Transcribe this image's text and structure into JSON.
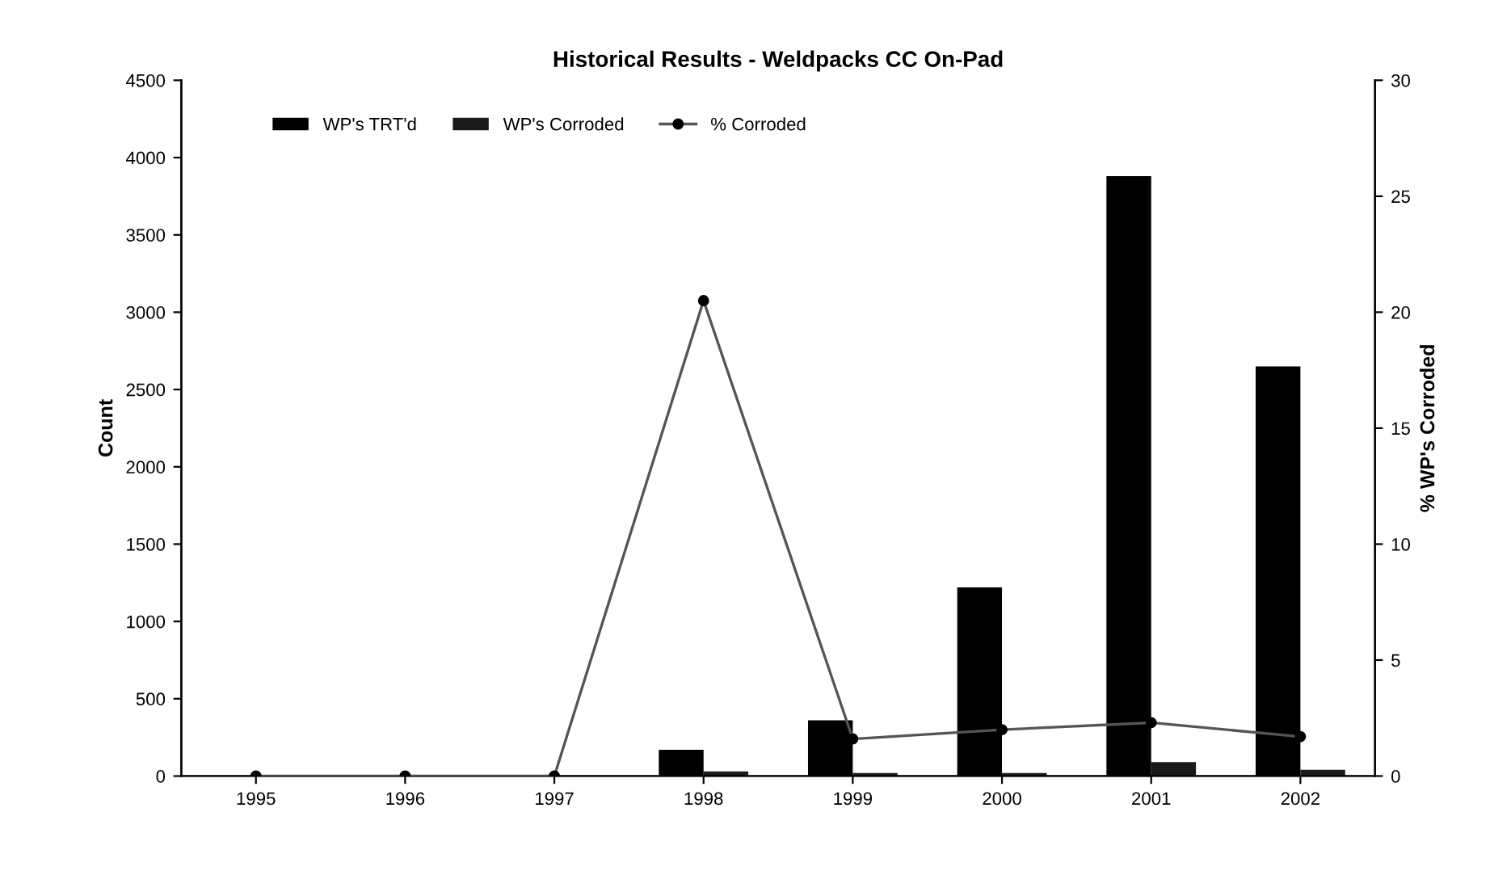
{
  "chart_data": {
    "type": "bar",
    "title": "Historical Results - Weldpacks CC On-Pad",
    "ylabel": "Count",
    "y2label": "% WP's Corroded",
    "categories": [
      "1995",
      "1996",
      "1997",
      "1998",
      "1999",
      "2000",
      "2001",
      "2002"
    ],
    "series": [
      {
        "name": "WP's TRT'd",
        "color": "#000000",
        "values": [
          0,
          0,
          0,
          170,
          360,
          1220,
          3880,
          2650
        ]
      },
      {
        "name": "WP's Corroded",
        "color": "#1a1a1a",
        "values": [
          0,
          0,
          0,
          30,
          20,
          20,
          90,
          40
        ]
      },
      {
        "name": "% Corroded",
        "type": "line",
        "axis": "y2",
        "color": "#555555",
        "marker": "circle",
        "values": [
          0,
          0,
          0,
          20.5,
          1.6,
          2.0,
          2.3,
          1.7
        ]
      }
    ],
    "ylim": [
      0,
      4500
    ],
    "yticks": [
      0,
      500,
      1000,
      1500,
      2000,
      2500,
      3000,
      3500,
      4000,
      4500
    ],
    "y2lim": [
      0,
      30
    ],
    "y2ticks": [
      0,
      5,
      10,
      15,
      20,
      25,
      30
    ],
    "grid": false,
    "legend": "top"
  }
}
